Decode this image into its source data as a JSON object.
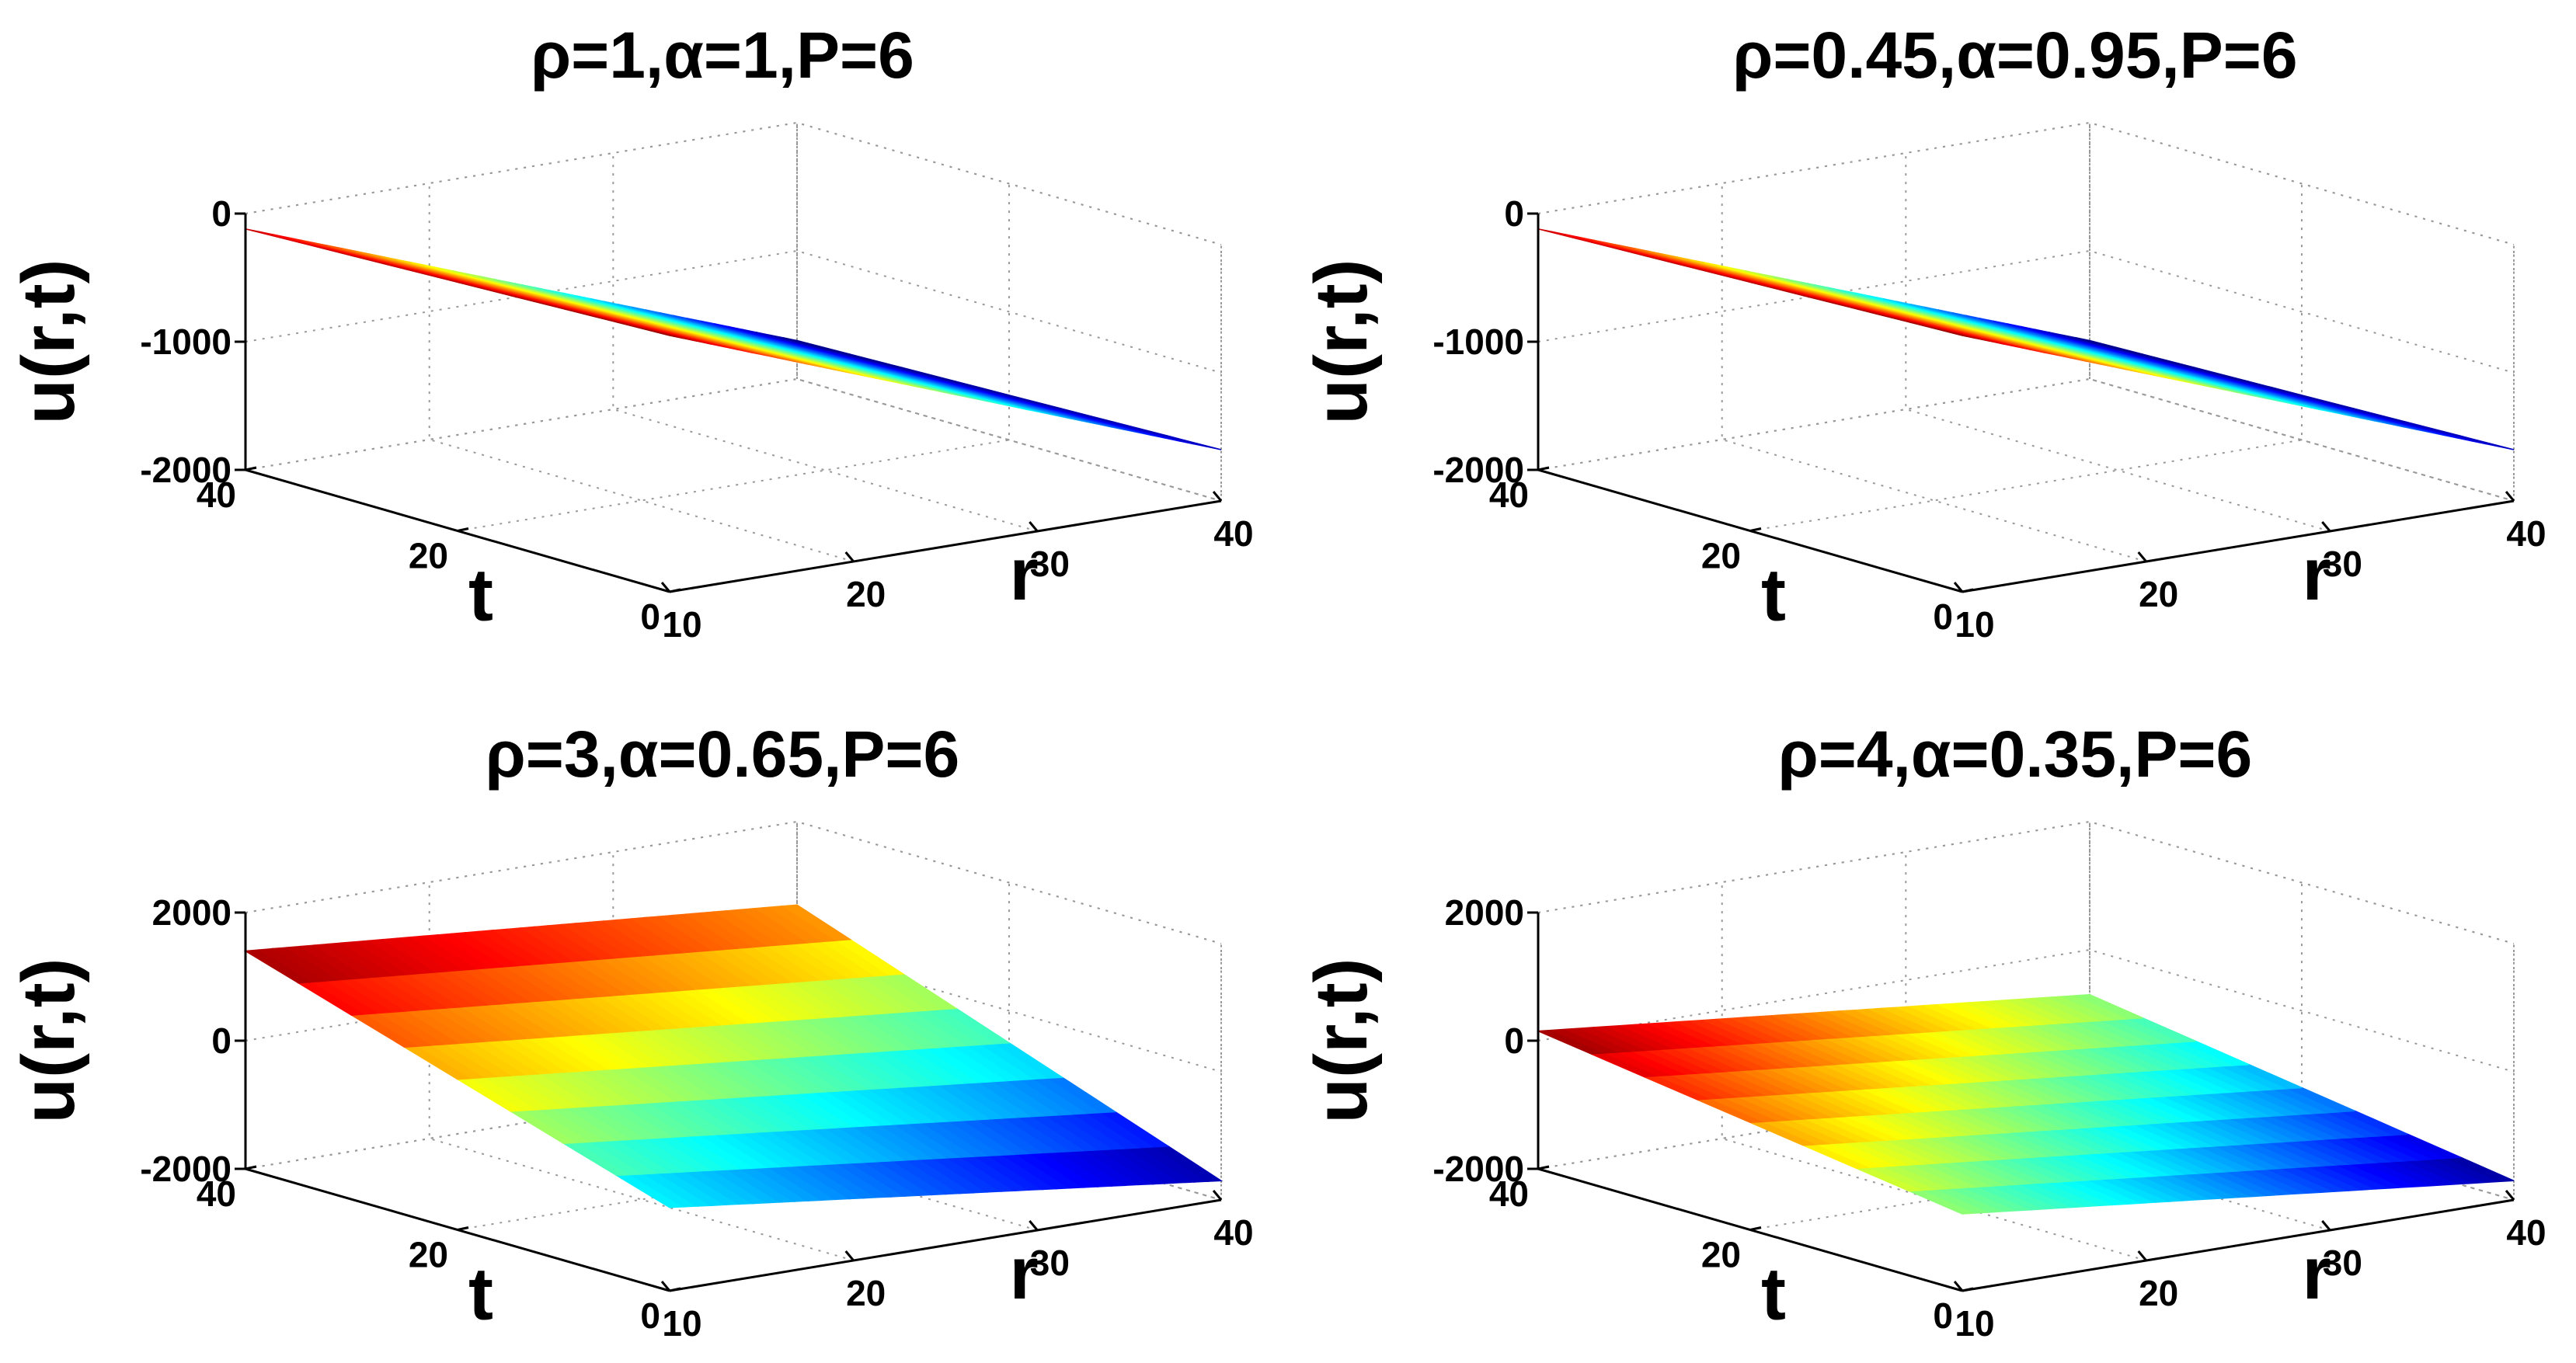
{
  "chart_data": [
    {
      "type": "surface",
      "title": "ρ=1,α=1,P=6",
      "xlabel": "r",
      "ylabel": "t",
      "zlabel": "u(r,t)",
      "xlim": [
        10,
        40
      ],
      "ylim": [
        0,
        40
      ],
      "zlim": [
        -2000,
        0
      ],
      "xticks": [
        10,
        20,
        30,
        40
      ],
      "yticks": [
        0,
        20,
        40
      ],
      "zticks": [
        -2000,
        -1000,
        0
      ],
      "corner_values": {
        "r10_t0": 0,
        "r10_t40": -120,
        "r40_t0": -1600,
        "r40_t40": -1700
      },
      "color_range": [
        -1700,
        0
      ]
    },
    {
      "type": "surface",
      "title": "ρ=0.45,α=0.95,P=6",
      "xlabel": "r",
      "ylabel": "t",
      "zlabel": "u(r,t)",
      "xlim": [
        10,
        40
      ],
      "ylim": [
        0,
        40
      ],
      "zlim": [
        -2000,
        0
      ],
      "xticks": [
        10,
        20,
        30,
        40
      ],
      "yticks": [
        0,
        20,
        40
      ],
      "zticks": [
        -2000,
        -1000,
        0
      ],
      "corner_values": {
        "r10_t0": 0,
        "r10_t40": -120,
        "r40_t0": -1600,
        "r40_t40": -1700
      },
      "color_range": [
        -1700,
        0
      ]
    },
    {
      "type": "surface",
      "title": "ρ=3,α=0.65,P=6",
      "xlabel": "r",
      "ylabel": "t",
      "zlabel": "u(r,t)",
      "xlim": [
        10,
        40
      ],
      "ylim": [
        0,
        40
      ],
      "zlim": [
        -2000,
        2000
      ],
      "xticks": [
        10,
        20,
        30,
        40
      ],
      "yticks": [
        0,
        20,
        40
      ],
      "zticks": [
        -2000,
        0,
        2000
      ],
      "corner_values": {
        "r10_t0": -700,
        "r10_t40": 1400,
        "r40_t0": -1700,
        "r40_t40": 700
      },
      "color_range": [
        -1700,
        1400
      ]
    },
    {
      "type": "surface",
      "title": "ρ=4,α=0.35,P=6",
      "xlabel": "r",
      "ylabel": "t",
      "zlabel": "u(r,t)",
      "xlim": [
        10,
        40
      ],
      "ylim": [
        0,
        40
      ],
      "zlim": [
        -2000,
        2000
      ],
      "xticks": [
        10,
        20,
        30,
        40
      ],
      "yticks": [
        0,
        20,
        40
      ],
      "zticks": [
        -2000,
        0,
        2000
      ],
      "corner_values": {
        "r10_t0": -800,
        "r10_t40": 150,
        "r40_t0": -1700,
        "r40_t40": -700
      },
      "color_range": [
        -1700,
        150
      ]
    }
  ]
}
